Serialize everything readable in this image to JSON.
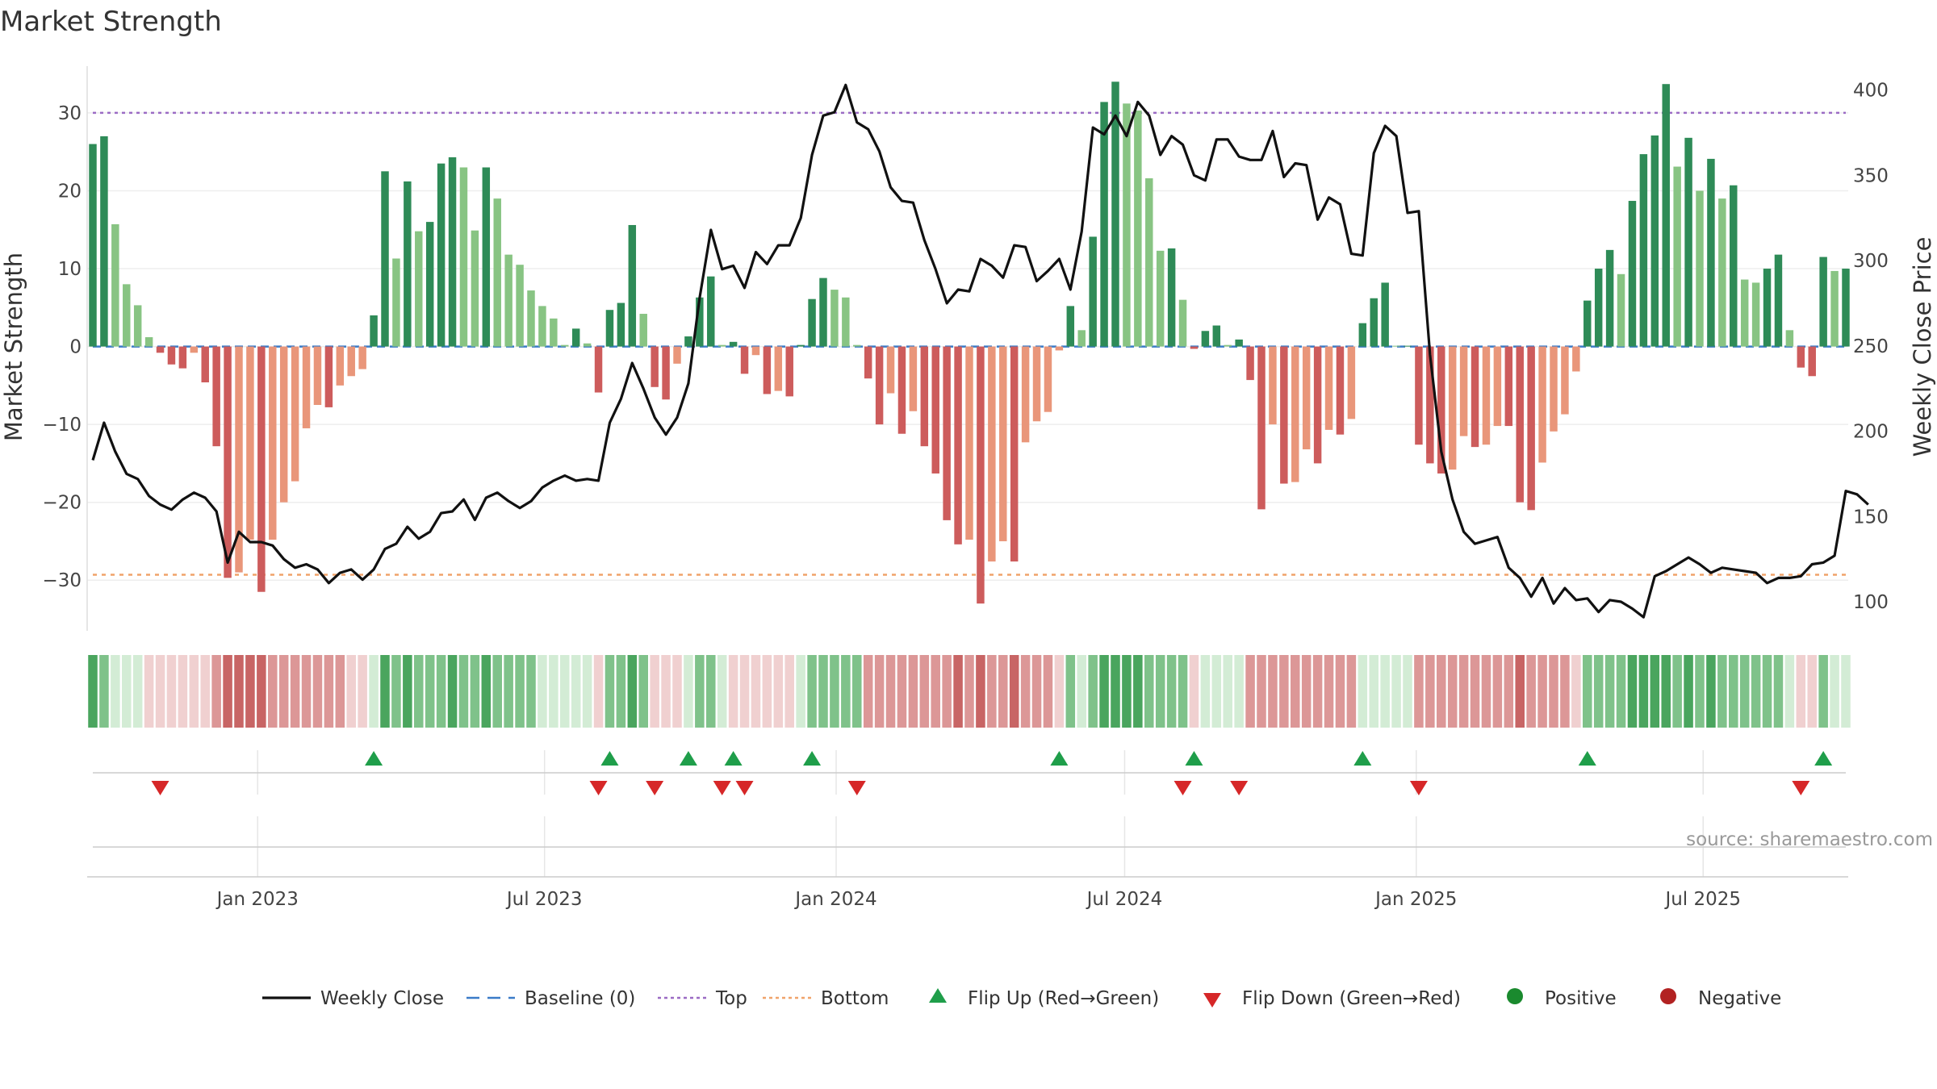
{
  "chart_data": {
    "type": "bar+line",
    "title": "Market Strength",
    "source": "source: sharemaestro.com",
    "ylabel_left": "Market Strength",
    "ylabel_right": "Weekly Close Price",
    "ylim_left": [
      -36.5,
      36
    ],
    "ylim_right": [
      83,
      414
    ],
    "yticks_left": [
      30,
      20,
      10,
      0,
      -10,
      -20,
      -30
    ],
    "ytick_labels_left": [
      "30",
      "20",
      "10",
      "0",
      "−10",
      "−20",
      "−30"
    ],
    "yticks_right": [
      400,
      350,
      300,
      250,
      200,
      150,
      100
    ],
    "ytick_labels_right": [
      "400",
      "350",
      "300",
      "250",
      "200",
      "150",
      "100"
    ],
    "x_start": "2022-09-19",
    "x_end": "2025-09-29",
    "x_ticks": [
      {
        "date": "2023-01-01",
        "label": "Jan 2023"
      },
      {
        "date": "2023-07-01",
        "label": "Jul 2023"
      },
      {
        "date": "2024-01-01",
        "label": "Jan 2024"
      },
      {
        "date": "2024-07-01",
        "label": "Jul 2024"
      },
      {
        "date": "2025-01-01",
        "label": "Jan 2025"
      },
      {
        "date": "2025-07-01",
        "label": "Jul 2025"
      }
    ],
    "reference_lines": [
      {
        "name": "Top",
        "value": 30,
        "color": "#9b6bc4"
      },
      {
        "name": "Bottom",
        "value": -29.3,
        "color": "#f0a36a"
      },
      {
        "name": "Baseline (0)",
        "value": 0,
        "color": "#3a7bc8"
      }
    ],
    "strength": [
      26,
      27,
      15.7,
      8,
      5.3,
      1.2,
      -0.8,
      -2.3,
      -2.8,
      -0.8,
      -4.6,
      -12.8,
      -29.7,
      -29,
      -24.8,
      -31.5,
      -24.8,
      -20,
      -17.3,
      -10.5,
      -7.5,
      -7.8,
      -5,
      -3.8,
      -2.9,
      4,
      22.5,
      11.3,
      21.2,
      14.8,
      16,
      23.5,
      24.3,
      23,
      14.9,
      23,
      19,
      11.8,
      10.5,
      7.2,
      5.2,
      3.6,
      0.2,
      2.3,
      0.4,
      -5.9,
      4.7,
      5.6,
      15.6,
      4.2,
      -5.2,
      -6.8,
      -2.2,
      1.3,
      6.3,
      9,
      0.2,
      0.6,
      -3.5,
      -1.1,
      -6.1,
      -5.7,
      -6.4,
      0.2,
      6.1,
      8.8,
      7.3,
      6.3,
      0.2,
      -4.1,
      -10,
      -6,
      -11.2,
      -8.3,
      -12.8,
      -16.3,
      -22.3,
      -25.4,
      -24.8,
      -33,
      -27.6,
      -25,
      -27.6,
      -12.3,
      -9.6,
      -8.4,
      -0.5,
      5.2,
      2.1,
      14.1,
      31.4,
      34,
      31.2,
      30.3,
      21.6,
      12.3,
      12.6,
      6,
      -0.3,
      2,
      2.7,
      0.2,
      0.9,
      -4.3,
      -20.9,
      -10,
      -17.6,
      -17.4,
      -13.2,
      -15,
      -10.7,
      -11.3,
      -9.3,
      3,
      6.2,
      8.2,
      0.1,
      0.1,
      -12.6,
      -15,
      -16.3,
      -15.8,
      -11.5,
      -12.9,
      -12.6,
      -10.2,
      -10.2,
      -20,
      -21,
      -14.9,
      -10.9,
      -8.7,
      -3.2,
      5.9,
      10,
      12.4,
      9.3,
      18.7,
      24.7,
      27.1,
      33.7,
      23.1,
      26.8,
      20,
      24.1,
      19,
      20.7,
      8.6,
      8.2,
      10,
      11.8,
      2.1,
      -2.7,
      -3.8,
      11.5,
      9.7,
      10
    ],
    "close": [
      183,
      205,
      188,
      175,
      172,
      162,
      157,
      154,
      160,
      164,
      161,
      153,
      123,
      141,
      135,
      135,
      133,
      125,
      120,
      122,
      119,
      111,
      117,
      119,
      113,
      119,
      131,
      134,
      144,
      137,
      141,
      152,
      153,
      160,
      148,
      161,
      164,
      159,
      155,
      159,
      167,
      171,
      174,
      171,
      172,
      171,
      205,
      219,
      240,
      225,
      208,
      198,
      208,
      228,
      278,
      318,
      295,
      297,
      284,
      305,
      298,
      309,
      309,
      325,
      362,
      385,
      387,
      403,
      381,
      377,
      364,
      343,
      335,
      334,
      312,
      295,
      275,
      283,
      282,
      301,
      297,
      290,
      309,
      308,
      288,
      294,
      301,
      283,
      317,
      378,
      374,
      385,
      373,
      393,
      385,
      362,
      373,
      368,
      350,
      347,
      371,
      371,
      361,
      359,
      359,
      376,
      349,
      357,
      356,
      324,
      337,
      333,
      304,
      303,
      363,
      379,
      373,
      328,
      329,
      245,
      188,
      160,
      141,
      134,
      136,
      138,
      120,
      114,
      103,
      114,
      99,
      108,
      101,
      102,
      94,
      101,
      100,
      96,
      91,
      115,
      118,
      122,
      126,
      122,
      117,
      120,
      119,
      118,
      117,
      111,
      114,
      114,
      115,
      122,
      123,
      127,
      165,
      163,
      157
    ],
    "color_strip_levels": [
      3,
      2,
      1,
      1,
      1,
      -1,
      -1,
      -1,
      -1,
      -1,
      -1,
      -2,
      -3,
      -3,
      -3,
      -3,
      -2,
      -2,
      -2,
      -2,
      -2,
      -2,
      -2,
      -1,
      -1,
      1,
      3,
      2,
      3,
      2,
      2,
      2,
      3,
      2,
      2,
      3,
      2,
      2,
      2,
      2,
      1,
      1,
      1,
      1,
      1,
      -1,
      2,
      2,
      3,
      2,
      -1,
      -1,
      -1,
      1,
      2,
      2,
      1,
      -1,
      -1,
      -1,
      -1,
      -1,
      -1,
      1,
      2,
      2,
      2,
      2,
      2,
      -2,
      -2,
      -2,
      -2,
      -2,
      -2,
      -2,
      -2,
      -3,
      -2,
      -3,
      -2,
      -2,
      -3,
      -2,
      -2,
      -2,
      -1,
      2,
      1,
      2,
      3,
      3,
      3,
      3,
      2,
      2,
      2,
      2,
      -1,
      1,
      1,
      1,
      1,
      -2,
      -2,
      -2,
      -2,
      -2,
      -2,
      -2,
      -2,
      -2,
      -2,
      1,
      1,
      1,
      1,
      1,
      -2,
      -2,
      -2,
      -2,
      -2,
      -2,
      -2,
      -2,
      -2,
      -3,
      -2,
      -2,
      -2,
      -2,
      -1,
      2,
      2,
      2,
      2,
      3,
      3,
      3,
      3,
      2,
      3,
      2,
      3,
      2,
      2,
      2,
      2,
      2,
      2,
      1,
      -1,
      -1,
      2,
      1,
      1
    ],
    "flip_up_weeks": [
      25,
      46,
      53,
      57,
      64,
      86,
      98,
      113,
      133,
      154
    ],
    "flip_down_weeks": [
      6,
      45,
      50,
      56,
      58,
      68,
      97,
      102,
      118,
      152
    ],
    "legend": [
      {
        "label": "Weekly Close",
        "kind": "line",
        "color": "#111111"
      },
      {
        "label": "Baseline (0)",
        "kind": "dash",
        "color": "#3a7bc8"
      },
      {
        "label": "Top",
        "kind": "dot",
        "color": "#9b6bc4"
      },
      {
        "label": "Bottom",
        "kind": "dot",
        "color": "#f0a36a"
      },
      {
        "label": "Flip Up (Red→Green)",
        "kind": "tri-up",
        "color": "#1f9e4a"
      },
      {
        "label": "Flip Down (Green→Red)",
        "kind": "tri-down",
        "color": "#d62728"
      },
      {
        "label": "Positive",
        "kind": "dot-circle",
        "color": "#1a8a2e"
      },
      {
        "label": "Negative",
        "kind": "dot-circle",
        "color": "#b22222"
      }
    ],
    "colors": {
      "pos_strong": "#2e8b57",
      "pos_weak": "#88c483",
      "neg_strong": "#cd5c5c",
      "neg_weak": "#e9967a",
      "price_line": "#111111",
      "strip_pos": [
        "#d3ecd5",
        "#7fc28a",
        "#4aa55e"
      ],
      "strip_neg": [
        "#f0d0d0",
        "#dc9797",
        "#c86565"
      ]
    }
  }
}
